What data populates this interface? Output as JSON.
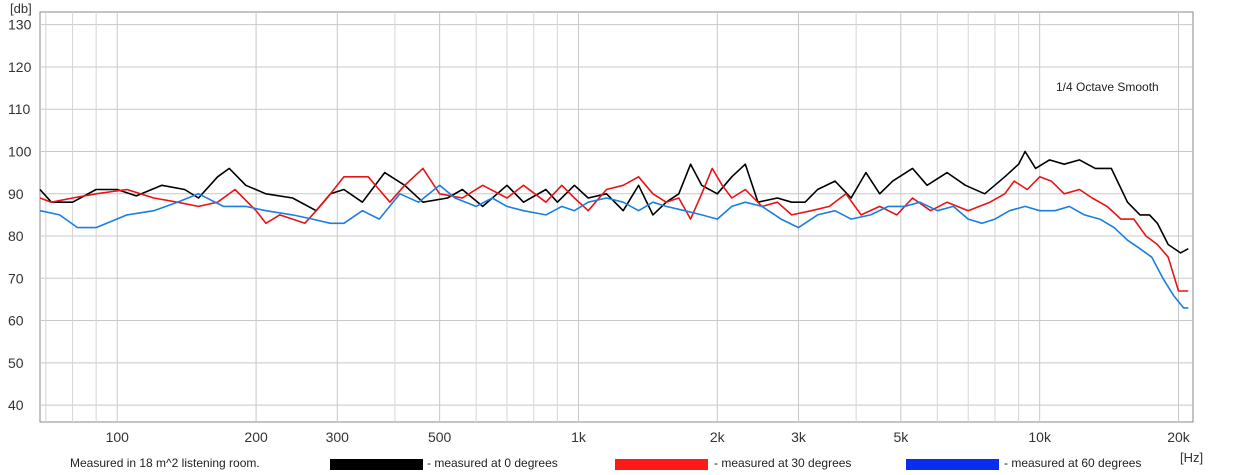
{
  "chart_data": {
    "type": "line",
    "title": "",
    "xlabel": "[Hz]",
    "ylabel": "[db]",
    "x_scale": "log",
    "xlim": [
      68,
      21500
    ],
    "ylim": [
      36,
      133
    ],
    "y_ticks": [
      40,
      50,
      60,
      70,
      80,
      90,
      100,
      110,
      120,
      130
    ],
    "x_ticks": [
      {
        "value": 100,
        "label": "100"
      },
      {
        "value": 200,
        "label": "200"
      },
      {
        "value": 300,
        "label": "300"
      },
      {
        "value": 500,
        "label": "500"
      },
      {
        "value": 1000,
        "label": "1k"
      },
      {
        "value": 2000,
        "label": "2k"
      },
      {
        "value": 3000,
        "label": "3k"
      },
      {
        "value": 5000,
        "label": "5k"
      },
      {
        "value": 10000,
        "label": "10k"
      },
      {
        "value": 20000,
        "label": "20k"
      }
    ],
    "x_minor_ticks": [
      70,
      80,
      90,
      400,
      600,
      700,
      800,
      900,
      4000,
      6000,
      7000,
      8000,
      9000
    ],
    "annotation": "1/4 Octave Smooth",
    "grid": true,
    "series": [
      {
        "name": "- measured at 0 degrees",
        "color": "#000000",
        "legend_color": "#000000",
        "points": [
          [
            68,
            91
          ],
          [
            72,
            88
          ],
          [
            80,
            88
          ],
          [
            90,
            91
          ],
          [
            100,
            91
          ],
          [
            110,
            89.5
          ],
          [
            125,
            92
          ],
          [
            140,
            91
          ],
          [
            150,
            89
          ],
          [
            165,
            94
          ],
          [
            175,
            96
          ],
          [
            190,
            92
          ],
          [
            210,
            90
          ],
          [
            240,
            89
          ],
          [
            270,
            86
          ],
          [
            290,
            90
          ],
          [
            310,
            91
          ],
          [
            340,
            88
          ],
          [
            380,
            95
          ],
          [
            420,
            92
          ],
          [
            460,
            88
          ],
          [
            520,
            89
          ],
          [
            560,
            91
          ],
          [
            620,
            87
          ],
          [
            700,
            92
          ],
          [
            760,
            88
          ],
          [
            850,
            91
          ],
          [
            900,
            88
          ],
          [
            980,
            92
          ],
          [
            1050,
            89
          ],
          [
            1150,
            90
          ],
          [
            1250,
            86
          ],
          [
            1350,
            92
          ],
          [
            1450,
            85
          ],
          [
            1550,
            88
          ],
          [
            1650,
            90
          ],
          [
            1750,
            97
          ],
          [
            1850,
            92
          ],
          [
            2000,
            90
          ],
          [
            2150,
            94
          ],
          [
            2300,
            97
          ],
          [
            2450,
            88
          ],
          [
            2700,
            89
          ],
          [
            2900,
            88
          ],
          [
            3100,
            88
          ],
          [
            3300,
            91
          ],
          [
            3600,
            93
          ],
          [
            3900,
            89
          ],
          [
            4200,
            95
          ],
          [
            4500,
            90
          ],
          [
            4800,
            93
          ],
          [
            5300,
            96
          ],
          [
            5700,
            92
          ],
          [
            6300,
            95
          ],
          [
            6900,
            92
          ],
          [
            7600,
            90
          ],
          [
            8400,
            94
          ],
          [
            9000,
            97
          ],
          [
            9300,
            100
          ],
          [
            9800,
            96
          ],
          [
            10500,
            98
          ],
          [
            11300,
            97
          ],
          [
            12200,
            98
          ],
          [
            13200,
            96
          ],
          [
            14300,
            96
          ],
          [
            15500,
            88
          ],
          [
            16500,
            85
          ],
          [
            17300,
            85
          ],
          [
            18000,
            83
          ],
          [
            19000,
            78
          ],
          [
            20200,
            76
          ],
          [
            21000,
            77
          ]
        ]
      },
      {
        "name": "- measured at 30 degrees",
        "color": "#e81416",
        "legend_color": "#ff1a1a",
        "points": [
          [
            68,
            89
          ],
          [
            72,
            88
          ],
          [
            80,
            89
          ],
          [
            90,
            90
          ],
          [
            105,
            91
          ],
          [
            120,
            89
          ],
          [
            135,
            88
          ],
          [
            150,
            87
          ],
          [
            165,
            88
          ],
          [
            180,
            91
          ],
          [
            200,
            86
          ],
          [
            210,
            83
          ],
          [
            225,
            85
          ],
          [
            240,
            84
          ],
          [
            255,
            83
          ],
          [
            270,
            86
          ],
          [
            290,
            90
          ],
          [
            310,
            94
          ],
          [
            350,
            94
          ],
          [
            390,
            88
          ],
          [
            420,
            92
          ],
          [
            460,
            96
          ],
          [
            500,
            90
          ],
          [
            560,
            89
          ],
          [
            620,
            92
          ],
          [
            700,
            89
          ],
          [
            760,
            92
          ],
          [
            850,
            88
          ],
          [
            920,
            92
          ],
          [
            980,
            89
          ],
          [
            1050,
            86
          ],
          [
            1150,
            91
          ],
          [
            1250,
            92
          ],
          [
            1350,
            94
          ],
          [
            1450,
            90
          ],
          [
            1550,
            88
          ],
          [
            1650,
            89
          ],
          [
            1750,
            84
          ],
          [
            1850,
            90
          ],
          [
            1950,
            96
          ],
          [
            2050,
            92
          ],
          [
            2150,
            89
          ],
          [
            2300,
            91
          ],
          [
            2500,
            87
          ],
          [
            2700,
            88
          ],
          [
            2900,
            85
          ],
          [
            3200,
            86
          ],
          [
            3500,
            87
          ],
          [
            3800,
            90
          ],
          [
            4100,
            85
          ],
          [
            4500,
            87
          ],
          [
            4900,
            85
          ],
          [
            5300,
            89
          ],
          [
            5800,
            86
          ],
          [
            6300,
            88
          ],
          [
            7000,
            86
          ],
          [
            7800,
            88
          ],
          [
            8400,
            90
          ],
          [
            8800,
            93
          ],
          [
            9400,
            91
          ],
          [
            10000,
            94
          ],
          [
            10600,
            93
          ],
          [
            11300,
            90
          ],
          [
            12200,
            91
          ],
          [
            13000,
            89
          ],
          [
            14000,
            87
          ],
          [
            15000,
            84
          ],
          [
            16000,
            84
          ],
          [
            17000,
            80
          ],
          [
            18000,
            78
          ],
          [
            19000,
            75
          ],
          [
            20000,
            67
          ],
          [
            21000,
            67
          ]
        ]
      },
      {
        "name": "- measured at 60 degrees",
        "color": "#1a7fe0",
        "legend_color": "#0a2ef0",
        "points": [
          [
            68,
            86
          ],
          [
            75,
            85
          ],
          [
            82,
            82
          ],
          [
            90,
            82
          ],
          [
            105,
            85
          ],
          [
            120,
            86
          ],
          [
            135,
            88
          ],
          [
            150,
            90
          ],
          [
            170,
            87
          ],
          [
            190,
            87
          ],
          [
            210,
            86
          ],
          [
            240,
            85
          ],
          [
            265,
            84
          ],
          [
            290,
            83
          ],
          [
            310,
            83
          ],
          [
            340,
            86
          ],
          [
            370,
            84
          ],
          [
            410,
            90
          ],
          [
            450,
            88
          ],
          [
            500,
            92
          ],
          [
            540,
            89
          ],
          [
            600,
            87
          ],
          [
            650,
            89
          ],
          [
            700,
            87
          ],
          [
            760,
            86
          ],
          [
            850,
            85
          ],
          [
            920,
            87
          ],
          [
            980,
            86
          ],
          [
            1050,
            88
          ],
          [
            1150,
            89
          ],
          [
            1250,
            88
          ],
          [
            1350,
            86
          ],
          [
            1450,
            88
          ],
          [
            1550,
            87
          ],
          [
            1700,
            86
          ],
          [
            1850,
            85
          ],
          [
            2000,
            84
          ],
          [
            2150,
            87
          ],
          [
            2300,
            88
          ],
          [
            2500,
            87
          ],
          [
            2750,
            84
          ],
          [
            3000,
            82
          ],
          [
            3300,
            85
          ],
          [
            3600,
            86
          ],
          [
            3900,
            84
          ],
          [
            4300,
            85
          ],
          [
            4700,
            87
          ],
          [
            5100,
            87
          ],
          [
            5500,
            88
          ],
          [
            6000,
            86
          ],
          [
            6500,
            87
          ],
          [
            7000,
            84
          ],
          [
            7500,
            83
          ],
          [
            8000,
            84
          ],
          [
            8600,
            86
          ],
          [
            9300,
            87
          ],
          [
            10000,
            86
          ],
          [
            10800,
            86
          ],
          [
            11600,
            87
          ],
          [
            12500,
            85
          ],
          [
            13500,
            84
          ],
          [
            14500,
            82
          ],
          [
            15500,
            79
          ],
          [
            16500,
            77
          ],
          [
            17500,
            75
          ],
          [
            18500,
            70
          ],
          [
            19500,
            66
          ],
          [
            20500,
            63
          ],
          [
            21000,
            63
          ]
        ]
      }
    ],
    "footer_note": "Measured in 18 m^2  listening room."
  }
}
